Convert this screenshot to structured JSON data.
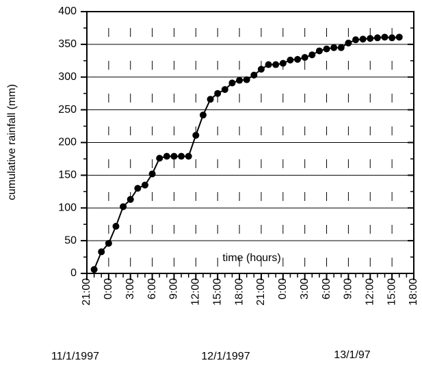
{
  "chart_data": {
    "type": "line",
    "x_label": "time (hours)",
    "y_label": "cumulative rainfall (mm)",
    "date_labels": [
      "11/1/1997",
      "12/1/1997",
      "13/1/97"
    ],
    "x": [
      22,
      23,
      24,
      25,
      26,
      27,
      28,
      29,
      30,
      31,
      32,
      33,
      34,
      35,
      36,
      37,
      38,
      39,
      40,
      41,
      42,
      43,
      44,
      45,
      46,
      47,
      48,
      49,
      50,
      51,
      52,
      53,
      54,
      55,
      56,
      57,
      58,
      59,
      60,
      61,
      62,
      63,
      64
    ],
    "series": [
      {
        "name": "cumulative rainfall",
        "color": "#000000",
        "values": [
          6,
          33,
          46,
          72,
          102,
          113,
          130,
          135,
          152,
          176,
          179,
          179,
          179,
          179,
          211,
          242,
          266,
          275,
          281,
          291,
          295,
          296,
          303,
          312,
          319,
          319,
          321,
          326,
          327,
          330,
          334,
          340,
          343,
          345,
          345,
          352,
          357,
          358,
          359,
          360,
          361,
          360,
          361
        ]
      }
    ],
    "xlim": [
      21,
      66
    ],
    "xticks": [
      {
        "value": 21,
        "label": "21:00"
      },
      {
        "value": 24,
        "label": "0:00"
      },
      {
        "value": 27,
        "label": "3:00"
      },
      {
        "value": 30,
        "label": "6:00"
      },
      {
        "value": 33,
        "label": "9:00"
      },
      {
        "value": 36,
        "label": "12:00"
      },
      {
        "value": 39,
        "label": "15:00"
      },
      {
        "value": 42,
        "label": "18:00"
      },
      {
        "value": 45,
        "label": "21:00"
      },
      {
        "value": 48,
        "label": "0:00"
      },
      {
        "value": 51,
        "label": "3:00"
      },
      {
        "value": 54,
        "label": "6:00"
      },
      {
        "value": 57,
        "label": "9:00"
      },
      {
        "value": 60,
        "label": "12:00"
      },
      {
        "value": 63,
        "label": "15:00"
      },
      {
        "value": 66,
        "label": "18:00"
      }
    ],
    "x_minor_step": 1,
    "ylim": [
      0,
      400
    ],
    "yticks": [
      0,
      50,
      100,
      150,
      200,
      250,
      300,
      350,
      400
    ],
    "y_minor_step": 25,
    "grid": true
  }
}
